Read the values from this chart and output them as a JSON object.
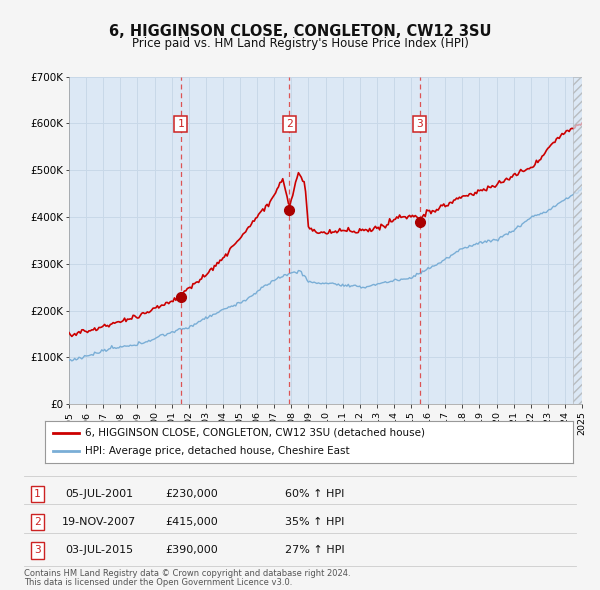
{
  "title": "6, HIGGINSON CLOSE, CONGLETON, CW12 3SU",
  "subtitle": "Price paid vs. HM Land Registry's House Price Index (HPI)",
  "xlim": [
    1995,
    2025
  ],
  "ylim": [
    0,
    700000
  ],
  "yticks": [
    0,
    100000,
    200000,
    300000,
    400000,
    500000,
    600000,
    700000
  ],
  "ytick_labels": [
    "£0",
    "£100K",
    "£200K",
    "£300K",
    "£400K",
    "£500K",
    "£600K",
    "£700K"
  ],
  "xticks": [
    1995,
    1996,
    1997,
    1998,
    1999,
    2000,
    2001,
    2002,
    2003,
    2004,
    2005,
    2006,
    2007,
    2008,
    2009,
    2010,
    2011,
    2012,
    2013,
    2014,
    2015,
    2016,
    2017,
    2018,
    2019,
    2020,
    2021,
    2022,
    2023,
    2024,
    2025
  ],
  "background_color": "#f5f5f5",
  "plot_bg_color": "#dce8f5",
  "grid_color": "#c8d8e8",
  "red_line_color": "#cc0000",
  "blue_line_color": "#7aaed6",
  "sale_marker_color": "#aa0000",
  "dashed_line_color": "#dd4444",
  "legend_box_color": "#ffffff",
  "sale_label_bg": "#ffffff",
  "sale_label_border": "#cc2222",
  "sales": [
    {
      "num": 1,
      "date": "05-JUL-2001",
      "year": 2001.54,
      "price": 230000,
      "pct": "60%",
      "dir": "↑"
    },
    {
      "num": 2,
      "date": "19-NOV-2007",
      "year": 2007.88,
      "price": 415000,
      "pct": "35%",
      "dir": "↑"
    },
    {
      "num": 3,
      "date": "03-JUL-2015",
      "year": 2015.5,
      "price": 390000,
      "pct": "27%",
      "dir": "↑"
    }
  ],
  "legend_line1": "6, HIGGINSON CLOSE, CONGLETON, CW12 3SU (detached house)",
  "legend_line2": "HPI: Average price, detached house, Cheshire East",
  "footer1": "Contains HM Land Registry data © Crown copyright and database right 2024.",
  "footer2": "This data is licensed under the Open Government Licence v3.0."
}
